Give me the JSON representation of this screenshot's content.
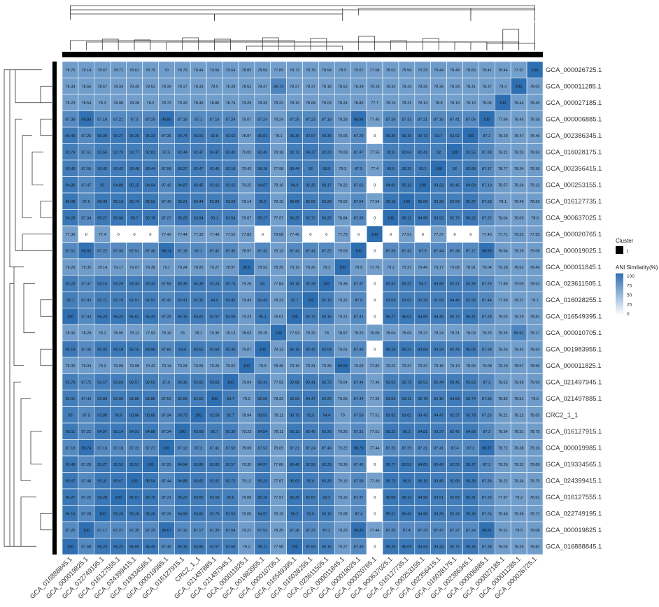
{
  "chart_data": {
    "type": "heatmap",
    "colors": {
      "low": "#ffffff",
      "high": "#2e6fb2",
      "cluster_bar": "#000000",
      "grid": "#ffffff"
    },
    "rows": [
      "GCA_000026725.1",
      "GCA_000011285.1",
      "GCA_000027185.1",
      "GCA_000006885.1",
      "GCA_002386345.1",
      "GCA_016028175.1",
      "GCA_002356415.1",
      "GCA_000253155.1",
      "GCA_016127735.1",
      "GCA_900637025.1",
      "GCA_000020765.1",
      "GCA_000019025.1",
      "GCA_000011845.1",
      "GCA_023611505.1",
      "GCA_016028255.1",
      "GCA_016549395.1",
      "GCA_000010705.1",
      "GCA_001983955.1",
      "GCA_000011825.1",
      "GCA_021497945.1",
      "GCA_021497885.1",
      "CRC2_1_1",
      "GCA_016127915.1",
      "GCA_000019985.1",
      "GCA_019334565.1",
      "GCA_024399415.1",
      "GCA_016127555.1",
      "GCA_022749195.1",
      "GCA_000019825.1",
      "GCA_016888845.1"
    ],
    "columns": [
      "GCA_016888845.1",
      "GCA_000019825.1",
      "GCA_022749195.1",
      "GCA_016127555.1",
      "GCA_024399415.1",
      "GCA_019334565.1",
      "GCA_000019985.1",
      "GCA_016127915.1",
      "CRC2_1_1",
      "GCA_021497885.1",
      "GCA_021497945.1",
      "GCA_000011825.1",
      "GCA_001983955.1",
      "GCA_000010705.1",
      "GCA_016549395.1",
      "GCA_016028255.1",
      "GCA_023611505.1",
      "GCA_000011845.1",
      "GCA_000019025.1",
      "GCA_000020765.1",
      "GCA_900637025.1",
      "GCA_016127735.1",
      "GCA_000253155.1",
      "GCA_002356415.1",
      "GCA_016028175.1",
      "GCA_002386345.1",
      "GCA_000006885.1",
      "GCA_000027185.1",
      "GCA_000011285.1",
      "GCA_000026725.1"
    ],
    "values": [
      [
        78.76,
        79.14,
        78.67,
        78.71,
        78.61,
        78.79,
        79,
        78.79,
        78.44,
        79.56,
        79.64,
        78.83,
        78.59,
        77.89,
        78.72,
        78.79,
        78.54,
        78.5,
        79.07,
        77.58,
        78.62,
        78.56,
        79.23,
        79.44,
        78.49,
        78.65,
        78.41,
        78.44,
        77.97,
        100
      ],
      [
        78.34,
        78.56,
        78.57,
        78.34,
        78.49,
        78.52,
        78.39,
        78.17,
        78.33,
        78.5,
        78.28,
        78.52,
        78.47,
        89.73,
        78.27,
        78.37,
        78.18,
        78.52,
        78.39,
        79.19,
        78.32,
        78.43,
        78.25,
        78.36,
        78.24,
        78.41,
        78.37,
        78.4,
        100,
        78.02
      ],
      [
        78.23,
        78.54,
        78.3,
        78.08,
        78.28,
        78.2,
        78.72,
        78.32,
        78.49,
        78.86,
        78.74,
        79.29,
        78.33,
        78.22,
        78.19,
        78.08,
        78.03,
        78.24,
        78.86,
        77.7,
        78.19,
        78.31,
        78.13,
        78.8,
        78.19,
        78.16,
        78.04,
        100,
        78.44,
        78.45
      ],
      [
        87.38,
        98.83,
        87.18,
        87.21,
        87.3,
        87.29,
        98.85,
        87.18,
        87.1,
        87.19,
        87.24,
        79.07,
        87.24,
        78.24,
        87.25,
        87.23,
        87.19,
        79.28,
        98.84,
        77.45,
        87.26,
        87.31,
        87.21,
        87.16,
        87.41,
        87.06,
        100,
        77.96,
        78.45,
        78.38
      ],
      [
        95.43,
        87.25,
        95.39,
        95.27,
        95.25,
        95.23,
        87.36,
        94.74,
        93.91,
        92.8,
        92.62,
        78.87,
        95.01,
        78.1,
        95.35,
        92.57,
        93.35,
        79.05,
        87.29,
        0,
        95.35,
        95.15,
        94.73,
        93.7,
        92.62,
        100,
        87.2,
        78.29,
        78.47,
        78.46
      ],
      [
        92.74,
        87.51,
        92.56,
        92.79,
        92.77,
        92.81,
        87.5,
        92.44,
        92.47,
        94.47,
        93.42,
        79.02,
        92.45,
        78.18,
        92.72,
        94.37,
        92.23,
        79.03,
        87.47,
        77.55,
        92.8,
        92.64,
        92.41,
        92,
        100,
        92.56,
        87.39,
        78.21,
        78.23,
        78.63
      ],
      [
        93.43,
        87.55,
        93.42,
        93.42,
        93.48,
        93.44,
        87.56,
        93.27,
        93.47,
        92.46,
        92.18,
        79.42,
        93.18,
        77.98,
        93.44,
        92,
        93.9,
        79.3,
        87.5,
        77.4,
        93.5,
        93.31,
        93.2,
        100,
        92,
        93.68,
        87.17,
        78.77,
        78.34,
        79.36
      ],
      [
        94.86,
        87.47,
        95,
        94.88,
        95.15,
        94.94,
        87.42,
        94.87,
        93.45,
        92.62,
        92.62,
        79.25,
        94.87,
        78.16,
        94.9,
        92.36,
        93.17,
        79.22,
        87.62,
        0,
        94.92,
        95.13,
        100,
        93.23,
        92.45,
        94.69,
        87.19,
        78.57,
        78.24,
        79.13
      ],
      [
        96.08,
        87.5,
        95.43,
        95.13,
        95.74,
        95.52,
        87.43,
        95.21,
        93.44,
        92.83,
        93.03,
        79.14,
        95.2,
        78.15,
        96.05,
        92.62,
        93.29,
        79.02,
        87.54,
        77.54,
        96.15,
        100,
        95.08,
        93.38,
        92.69,
        95.27,
        87.33,
        78.1,
        78.49,
        78.59
      ],
      [
        96.29,
        87.34,
        95.27,
        96.06,
        95.7,
        95.78,
        87.27,
        95.23,
        93.84,
        93.1,
        92.54,
        79.07,
        95.17,
        77.97,
        96.25,
        92.72,
        93.32,
        78.84,
        87.39,
        0,
        100,
        96.11,
        94.96,
        93.52,
        92.79,
        95.22,
        87.32,
        78.04,
        78.09,
        78.6
      ],
      [
        77.36,
        0,
        77.4,
        0,
        0,
        0,
        77.42,
        77.44,
        77.33,
        77.49,
        77.55,
        77.83,
        0,
        79.08,
        77.45,
        0,
        0,
        77.73,
        0,
        100,
        0,
        77.51,
        0,
        77.37,
        0,
        0,
        77.43,
        77.71,
        79.22,
        77.55
      ],
      [
        87.51,
        98.82,
        87.22,
        87.33,
        87.51,
        87.46,
        98.74,
        87.18,
        87.1,
        87.42,
        87.45,
        78.97,
        87.42,
        78.13,
        87.43,
        87.41,
        87.22,
        79.03,
        100,
        0,
        87.39,
        87.42,
        87.5,
        87.44,
        87.34,
        87.17,
        98.83,
        78.64,
        78.29,
        79.09
      ],
      [
        79.29,
        79.35,
        78.14,
        79.17,
        79.07,
        79.38,
        79.1,
        79.24,
        78.95,
        79.27,
        78.97,
        99.6,
        78.93,
        78.39,
        79.19,
        79.26,
        79.3,
        100,
        78.9,
        77.76,
        79.2,
        79.21,
        79.46,
        79.17,
        79.08,
        78.91,
        79.04,
        79.18,
        78.62,
        78.49
      ],
      [
        93.23,
        87.47,
        93.16,
        93.29,
        93.34,
        93.32,
        87.55,
        93.36,
        94.39,
        92.24,
        92.74,
        79.26,
        93,
        77.84,
        93.18,
        92.28,
        100,
        79.38,
        87.37,
        0,
        93.31,
        93.22,
        93.2,
        93.96,
        92.21,
        93.35,
        87.26,
        77.88,
        79.09,
        78.52
      ],
      [
        92.7,
        87.43,
        92.71,
        92.79,
        92.57,
        92.52,
        87.42,
        92.41,
        92.36,
        94.5,
        93.43,
        79.43,
        92.43,
        78.23,
        92.7,
        100,
        92.19,
        79.32,
        87.5,
        0,
        92.69,
        92.62,
        92.39,
        91.99,
        94.46,
        92.58,
        87.44,
        77.99,
        78.27,
        78.7
      ],
      [
        100,
        87.44,
        96.24,
        96.24,
        95.61,
        95.44,
        87.29,
        95.15,
        93.81,
        92.97,
        92.69,
        79.23,
        95.1,
        78.01,
        100,
        92.72,
        93.15,
        79.21,
        87.41,
        0,
        96.27,
        96.01,
        94.89,
        93.45,
        92.72,
        95.41,
        87.28,
        78.02,
        78.29,
        78.81
      ],
      [
        78.06,
        78.29,
        78.2,
        78.05,
        78.12,
        77.93,
        78.19,
        78,
        78.1,
        79.35,
        78.13,
        78.63,
        78.15,
        100,
        77.93,
        78.32,
        78,
        78.57,
        78.25,
        79.09,
        78.04,
        78.06,
        78.27,
        78.24,
        78.31,
        78.03,
        78.25,
        78.35,
        89.92,
        78.17
      ],
      [
        95.19,
        87.05,
        95.03,
        95.18,
        95.15,
        94.98,
        87.66,
        94.6,
        93.52,
        92.68,
        92.39,
        79.07,
        100,
        78.13,
        95.19,
        92.42,
        93.04,
        79.01,
        87.49,
        0,
        95.19,
        95.21,
        94.68,
        93.24,
        92.49,
        95.02,
        87.39,
        78.26,
        78.44,
        78.63
      ],
      [
        79.32,
        79.34,
        79.2,
        79.09,
        79.08,
        79.42,
        79.14,
        79.24,
        79.06,
        79.26,
        79.02,
        100,
        78.9,
        78.46,
        79.19,
        79.31,
        79.39,
        99.58,
        79.03,
        77.82,
        79.22,
        79.37,
        79.37,
        79.18,
        79.13,
        78.96,
        79.08,
        79.19,
        78.57,
        78.56
      ],
      [
        92.73,
        87.72,
        92.57,
        92.63,
        92.57,
        92.65,
        87.6,
        92.36,
        92.65,
        93.62,
        100,
        79.04,
        92.41,
        77.92,
        92.68,
        93.41,
        92.72,
        79.04,
        87.44,
        77.46,
        92.65,
        92.73,
        92.53,
        92.44,
        93.45,
        92.63,
        87.3,
        78.52,
        78.36,
        79.59
      ],
      [
        93.01,
        87.42,
        92.83,
        92.93,
        92.85,
        92.85,
        87.52,
        92.69,
        92.62,
        100,
        93.7,
        79.2,
        92.65,
        78.32,
        92.93,
        94.47,
        92.22,
        79.06,
        87.44,
        77.26,
        93.03,
        93.11,
        92.78,
        92.15,
        94.53,
        92.74,
        87.36,
        78.82,
        78.51,
        79.5
      ],
      [
        93.0,
        87.3,
        93.89,
        93.9,
        93.86,
        93.88,
        87.34,
        93.73,
        100,
        92.58,
        92.7,
        78.94,
        93.53,
        78.11,
        93.79,
        92.3,
        94.4,
        79,
        87.58,
        77.51,
        93.92,
        93.81,
        93.43,
        94.47,
        92.37,
        93.78,
        87.26,
        78.21,
        78.12,
        78.55
      ],
      [
        95.11,
        87.22,
        94.97,
        95.14,
        94.91,
        94.88,
        87.34,
        100,
        93.69,
        92.7,
        92.39,
        79.23,
        94.54,
        78.11,
        95.13,
        92.45,
        93.25,
        79.26,
        87.31,
        77.51,
        95.22,
        95.2,
        94.81,
        93.27,
        92.42,
        94.66,
        87.2,
        78.34,
        78.31,
        78.75
      ],
      [
        87.18,
        98.74,
        87.16,
        87.16,
        87.22,
        87.27,
        100,
        87.12,
        87.2,
        87.41,
        87.59,
        79.09,
        87.53,
        78.09,
        87.21,
        87.24,
        87.43,
        79.22,
        98.79,
        77.44,
        87.25,
        87.29,
        87.31,
        87.41,
        87.4,
        87.2,
        98.87,
        78.72,
        78.38,
        79.16
      ],
      [
        95.49,
        87.28,
        95.27,
        95.52,
        95.51,
        100,
        87.25,
        94.94,
        93.86,
        92.83,
        92.57,
        79.35,
        94.97,
        77.86,
        95.48,
        92.56,
        93.35,
        79.36,
        87.43,
        0,
        95.77,
        95.52,
        94.85,
        93.43,
        92.55,
        95.27,
        87.3,
        78.26,
        78.32,
        78.89
      ],
      [
        95.67,
        87.48,
        95.31,
        95.67,
        100,
        95.54,
        87.44,
        94.88,
        93.82,
        92.92,
        92.72,
        79.12,
        95.23,
        77.87,
        95.63,
        92.6,
        93.35,
        79.15,
        87.58,
        77.39,
        95.72,
        95.8,
        95.16,
        93.45,
        92.68,
        95.35,
        87.36,
        78.22,
        78.34,
        78.75
      ],
      [
        96.27,
        87.22,
        96.28,
        100,
        96.67,
        95.76,
        87.31,
        95.22,
        93.83,
        93.09,
        92.6,
        79.08,
        95.16,
        77.97,
        96.25,
        92.87,
        93.3,
        79.16,
        87.37,
        0,
        96.06,
        96.13,
        94.96,
        93.51,
        92.83,
        95.31,
        87.26,
        77.97,
        78.2,
        78.61
      ],
      [
        96.16,
        87.28,
        100,
        95.26,
        95.26,
        95.26,
        87.26,
        94.99,
        93.82,
        92.75,
        92.63,
        79.05,
        94.97,
        78.19,
        96.2,
        92.6,
        93.16,
        79.08,
        87.4,
        0,
        95.31,
        95.42,
        94.98,
        93.35,
        92.43,
        95.36,
        87.24,
        78.48,
        78.36,
        78.72
      ],
      [
        87.26,
        100,
        87.17,
        87.21,
        87.35,
        87.29,
        98.67,
        87.16,
        87.17,
        87.39,
        87.64,
        79.21,
        87.53,
        78.35,
        87.26,
        87.27,
        87.2,
        79.23,
        98.83,
        77.44,
        87.35,
        87.4,
        87.33,
        87.47,
        87.27,
        87.24,
        98.81,
        78.51,
        78.5,
        79.08
      ],
      [
        100,
        87.58,
        96.23,
        96.22,
        95.65,
        95.49,
        87.46,
        95.16,
        93.86,
        92.97,
        92.69,
        79.2,
        95.11,
        77.98,
        100,
        92.69,
        93.15,
        79.27,
        87.49,
        0,
        96.26,
        96.05,
        94.93,
        93.44,
        92.75,
        95.35,
        87.38,
        78.05,
        78.35,
        78.82
      ]
    ],
    "legend": {
      "cluster_title": "Cluster",
      "cluster_label": "1",
      "color_title": "ANI Similarity(%)",
      "ticks": [
        "100",
        "75",
        "50",
        "25",
        "0"
      ]
    }
  }
}
